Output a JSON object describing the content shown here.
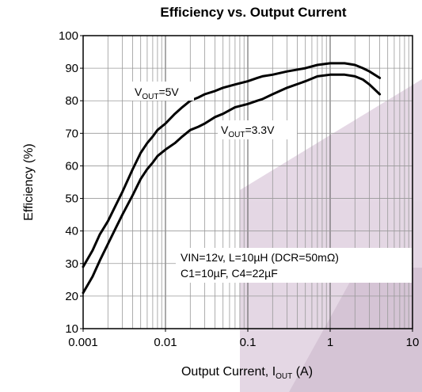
{
  "chart_data": {
    "type": "line",
    "title": "Efficiency vs. Output Current",
    "xlabel": "Output Current, I",
    "xlabel_sub": "OUT",
    "xlabel_unit": " (A)",
    "ylabel": "Efficiency (%)",
    "x_scale": "log",
    "xlim": [
      0.001,
      10
    ],
    "ylim": [
      10,
      100
    ],
    "x_ticks": [
      0.001,
      0.01,
      0.1,
      1,
      10
    ],
    "x_tick_labels": [
      "0.001",
      "0.01",
      "0.1",
      "1",
      "10"
    ],
    "y_ticks": [
      10,
      20,
      30,
      40,
      50,
      60,
      70,
      80,
      90,
      100
    ],
    "y_tick_labels": [
      "10",
      "20",
      "30",
      "40",
      "50",
      "60",
      "70",
      "80",
      "90",
      "100"
    ],
    "grid": true,
    "series": [
      {
        "name": "V_OUT=5V",
        "label_main": "V",
        "label_sub": "OUT",
        "label_rest": "=5V",
        "x": [
          0.001,
          0.0013,
          0.0016,
          0.002,
          0.0025,
          0.003,
          0.004,
          0.005,
          0.006,
          0.007,
          0.008,
          0.01,
          0.013,
          0.016,
          0.02,
          0.025,
          0.03,
          0.04,
          0.05,
          0.07,
          0.1,
          0.13,
          0.15,
          0.2,
          0.3,
          0.5,
          0.7,
          1.0,
          1.5,
          2.0,
          2.5,
          3.0,
          4.0
        ],
        "y": [
          29,
          34,
          39,
          43,
          48,
          52,
          59,
          64,
          67,
          69,
          71,
          73,
          76,
          78,
          80,
          81,
          82,
          83,
          84,
          85,
          86,
          87,
          87.5,
          88,
          89,
          90,
          91,
          91.5,
          91.5,
          91,
          90,
          89,
          87
        ]
      },
      {
        "name": "V_OUT=3.3V",
        "label_main": "V",
        "label_sub": "OUT",
        "label_rest": "=3.3V",
        "x": [
          0.001,
          0.0013,
          0.0016,
          0.002,
          0.0025,
          0.003,
          0.004,
          0.005,
          0.006,
          0.007,
          0.008,
          0.01,
          0.013,
          0.016,
          0.02,
          0.025,
          0.03,
          0.04,
          0.05,
          0.07,
          0.1,
          0.13,
          0.15,
          0.2,
          0.3,
          0.5,
          0.7,
          1.0,
          1.5,
          2.0,
          2.5,
          3.0,
          4.0
        ],
        "y": [
          21,
          26,
          31,
          36,
          41,
          45,
          51,
          56,
          59,
          61,
          63,
          65,
          67,
          69,
          71,
          72,
          73,
          75,
          76,
          78,
          79,
          80,
          80.5,
          82,
          84,
          86,
          87.5,
          88,
          88,
          87.5,
          86.5,
          85,
          82
        ]
      }
    ],
    "annotation_lines": [
      "VIN=12v, L=10µH (DCR=50mΩ)",
      "C1=10µF, C4=22µF"
    ]
  }
}
